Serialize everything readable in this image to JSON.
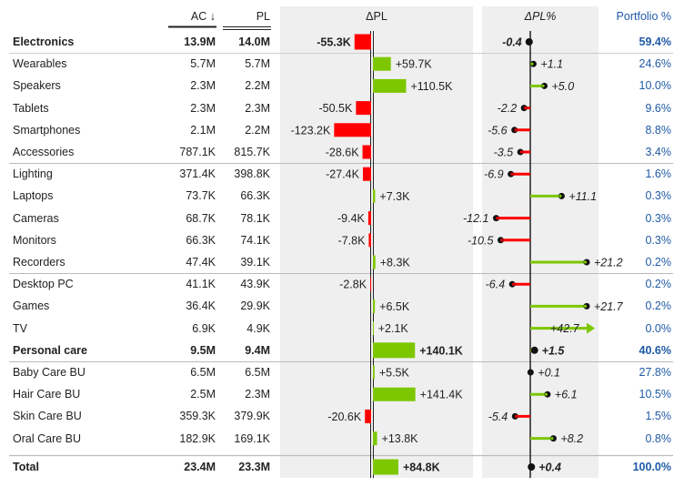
{
  "header": {
    "ac": "AC ↓",
    "pl": "PL",
    "delta_pl": "ΔPL",
    "delta_pl_pct": "ΔPL%",
    "portfolio": "Portfolio %"
  },
  "colors": {
    "positive": "#7dc700",
    "negative": "#ff0000",
    "panel": "#efefef",
    "portfolio_text": "#1f5aa6"
  },
  "chart_data": {
    "type": "table",
    "columns": [
      "",
      "AC ↓",
      "PL",
      "ΔPL",
      "ΔPL%",
      "Portfolio %"
    ],
    "rows": [
      {
        "label": "Electronics",
        "ac": "13.9M",
        "pl": "14.0M",
        "dpl": -55.3,
        "dpl_label": "-55.3K",
        "dplp": -0.4,
        "dplp_label": "-0.4",
        "port": "59.4%",
        "bold": true
      },
      {
        "label": "Wearables",
        "ac": "5.7M",
        "pl": "5.7M",
        "dpl": 59.7,
        "dpl_label": "+59.7K",
        "dplp": 1.1,
        "dplp_label": "+1.1",
        "port": "24.6%"
      },
      {
        "label": "Speakers",
        "ac": "2.3M",
        "pl": "2.2M",
        "dpl": 110.5,
        "dpl_label": "+110.5K",
        "dplp": 5.0,
        "dplp_label": "+5.0",
        "port": "10.0%"
      },
      {
        "label": "Tablets",
        "ac": "2.3M",
        "pl": "2.3M",
        "dpl": -50.5,
        "dpl_label": "-50.5K",
        "dplp": -2.2,
        "dplp_label": "-2.2",
        "port": "9.6%"
      },
      {
        "label": "Smartphones",
        "ac": "2.1M",
        "pl": "2.2M",
        "dpl": -123.2,
        "dpl_label": "-123.2K",
        "dplp": -5.6,
        "dplp_label": "-5.6",
        "port": "8.8%"
      },
      {
        "label": "Accessories",
        "ac": "787.1K",
        "pl": "815.7K",
        "dpl": -28.6,
        "dpl_label": "-28.6K",
        "dplp": -3.5,
        "dplp_label": "-3.5",
        "port": "3.4%"
      },
      {
        "label": "Lighting",
        "ac": "371.4K",
        "pl": "398.8K",
        "dpl": -27.4,
        "dpl_label": "-27.4K",
        "dplp": -6.9,
        "dplp_label": "-6.9",
        "port": "1.6%"
      },
      {
        "label": "Laptops",
        "ac": "73.7K",
        "pl": "66.3K",
        "dpl": 7.3,
        "dpl_label": "+7.3K",
        "dplp": 11.1,
        "dplp_label": "+11.1",
        "port": "0.3%"
      },
      {
        "label": "Cameras",
        "ac": "68.7K",
        "pl": "78.1K",
        "dpl": -9.4,
        "dpl_label": "-9.4K",
        "dplp": -12.1,
        "dplp_label": "-12.1",
        "port": "0.3%"
      },
      {
        "label": "Monitors",
        "ac": "66.3K",
        "pl": "74.1K",
        "dpl": -7.8,
        "dpl_label": "-7.8K",
        "dplp": -10.5,
        "dplp_label": "-10.5",
        "port": "0.3%"
      },
      {
        "label": "Recorders",
        "ac": "47.4K",
        "pl": "39.1K",
        "dpl": 8.3,
        "dpl_label": "+8.3K",
        "dplp": 21.2,
        "dplp_label": "+21.2",
        "port": "0.2%"
      },
      {
        "label": "Desktop PC",
        "ac": "41.1K",
        "pl": "43.9K",
        "dpl": -2.8,
        "dpl_label": "-2.8K",
        "dplp": -6.4,
        "dplp_label": "-6.4",
        "port": "0.2%"
      },
      {
        "label": "Games",
        "ac": "36.4K",
        "pl": "29.9K",
        "dpl": 6.5,
        "dpl_label": "+6.5K",
        "dplp": 21.7,
        "dplp_label": "+21.7",
        "port": "0.2%"
      },
      {
        "label": "TV",
        "ac": "6.9K",
        "pl": "4.9K",
        "dpl": 2.1,
        "dpl_label": "+2.1K",
        "dplp": 42.7,
        "dplp_label": "+42.7",
        "port": "0.0%",
        "overflow": true
      },
      {
        "label": "Personal care",
        "ac": "9.5M",
        "pl": "9.4M",
        "dpl": 140.1,
        "dpl_label": "+140.1K",
        "dplp": 1.5,
        "dplp_label": "+1.5",
        "port": "40.6%",
        "bold": true
      },
      {
        "label": "Baby Care BU",
        "ac": "6.5M",
        "pl": "6.5M",
        "dpl": 5.5,
        "dpl_label": "+5.5K",
        "dplp": 0.1,
        "dplp_label": "+0.1",
        "port": "27.8%"
      },
      {
        "label": "Hair Care BU",
        "ac": "2.5M",
        "pl": "2.3M",
        "dpl": 141.4,
        "dpl_label": "+141.4K",
        "dplp": 6.1,
        "dplp_label": "+6.1",
        "port": "10.5%"
      },
      {
        "label": "Skin Care BU",
        "ac": "359.3K",
        "pl": "379.9K",
        "dpl": -20.6,
        "dpl_label": "-20.6K",
        "dplp": -5.4,
        "dplp_label": "-5.4",
        "port": "1.5%"
      },
      {
        "label": "Oral Care BU",
        "ac": "182.9K",
        "pl": "169.1K",
        "dpl": 13.8,
        "dpl_label": "+13.8K",
        "dplp": 8.2,
        "dplp_label": "+8.2",
        "port": "0.8%"
      },
      {
        "label": "Total",
        "ac": "23.4M",
        "pl": "23.3M",
        "dpl": 84.8,
        "dpl_label": "+84.8K",
        "dplp": 0.4,
        "dplp_label": "+0.4",
        "port": "100.0%",
        "bold": true,
        "total": true
      }
    ]
  }
}
